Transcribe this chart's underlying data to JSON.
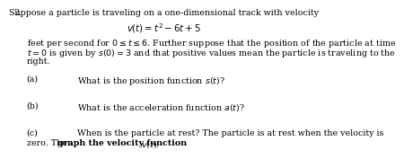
{
  "problem_number": "2.",
  "title_line": "Suppose a particle is traveling on a one-dimensional track with velocity",
  "equation": "$v(t) = t^2 - 6t + 5$",
  "body_line1": "feet per second for $0 \\leq t \\leq 6$. Further suppose that the position of the particle at time",
  "body_line2": "$t = 0$ is given by $s(0) = 3$ and that positive values mean the particle is traveling to the",
  "body_line3": "right.",
  "part_a_label": "(a)",
  "part_a_text": "What is the position function $s(t)$?",
  "part_b_label": "(b)",
  "part_b_text": "What is the acceleration function $a(t)$?",
  "part_c_label": "(c)",
  "part_c_line1": "When is the particle at rest? The particle is at rest when the velocity is",
  "part_c_line2_pre": "zero. Then ",
  "part_c_line2_bold": "graph the velocity function",
  "part_c_line2_end": " $v(t)$.",
  "bg_color": "#ffffff",
  "text_color": "#000000",
  "font_size": 6.8
}
